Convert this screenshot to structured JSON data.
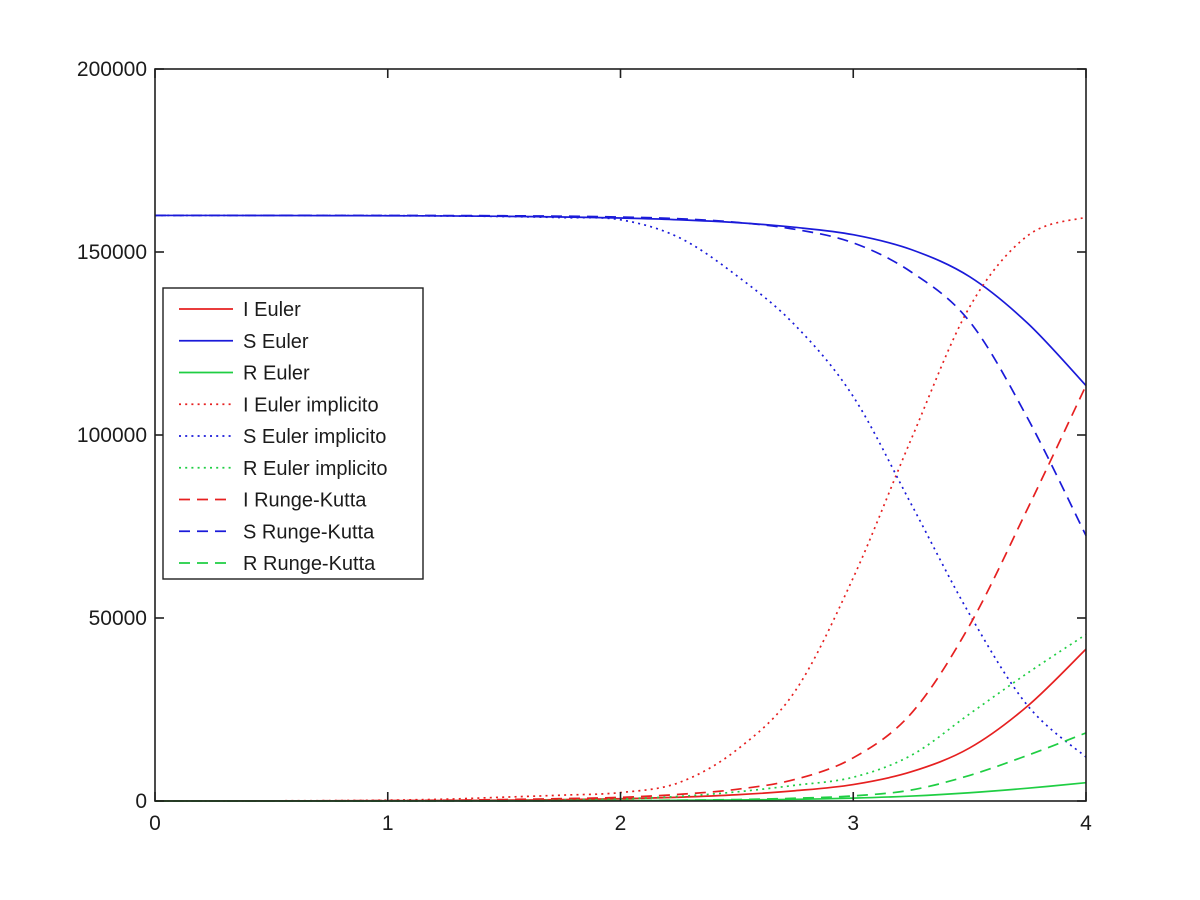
{
  "figure": {
    "background": "#ffffff",
    "axis_color": "#1f1f1f",
    "plot_bg": "#ffffff"
  },
  "chart_data": {
    "type": "line",
    "title": "",
    "xlabel": "",
    "ylabel": "",
    "xlim": [
      0,
      4
    ],
    "ylim": [
      0,
      200000
    ],
    "grid": false,
    "legend_position": "upper-left-inside",
    "x_ticks": [
      0,
      1,
      2,
      3,
      4
    ],
    "x_tick_labels": [
      "0",
      "1",
      "2",
      "3",
      "4"
    ],
    "y_ticks": [
      0,
      50000,
      100000,
      150000,
      200000
    ],
    "y_tick_labels": [
      "0",
      "50000",
      "100000",
      "150000",
      "200000"
    ],
    "x": [
      0,
      0.25,
      0.5,
      0.75,
      1,
      1.25,
      1.5,
      1.75,
      2,
      2.25,
      2.5,
      2.75,
      3,
      3.25,
      3.5,
      3.75,
      4
    ],
    "series": [
      {
        "name": "I Euler",
        "color": "#e62020",
        "style": "solid",
        "values": [
          10,
          16,
          28,
          48,
          80,
          135,
          225,
          375,
          620,
          1030,
          1700,
          2800,
          4500,
          8000,
          14500,
          26000,
          41500
        ]
      },
      {
        "name": "S Euler",
        "color": "#1a1ad9",
        "style": "solid",
        "values": [
          159990,
          159984,
          159972,
          159947,
          159910,
          159850,
          159745,
          159570,
          159285,
          158810,
          158030,
          156740,
          154720,
          150650,
          143250,
          130500,
          113500
        ]
      },
      {
        "name": "R Euler",
        "color": "#1fce43",
        "style": "solid",
        "values": [
          0,
          0,
          0,
          5,
          10,
          15,
          30,
          55,
          95,
          160,
          270,
          460,
          780,
          1350,
          2250,
          3500,
          5000
        ]
      },
      {
        "name": "I Euler implicito",
        "color": "#e62020",
        "style": "dotted",
        "values": [
          10,
          22,
          48,
          105,
          230,
          500,
          1050,
          1600,
          2300,
          5000,
          14000,
          30000,
          61000,
          99000,
          135000,
          154500,
          159500
        ]
      },
      {
        "name": "S Euler implicito",
        "color": "#1a1ad9",
        "style": "dotted",
        "values": [
          160000,
          160000,
          159990,
          159970,
          159930,
          159850,
          159700,
          159400,
          158800,
          154000,
          143500,
          130000,
          110500,
          81000,
          51000,
          26000,
          12000
        ]
      },
      {
        "name": "R Euler implicito",
        "color": "#1fce43",
        "style": "dotted",
        "values": [
          0,
          0,
          5,
          10,
          25,
          55,
          120,
          280,
          600,
          1250,
          2500,
          4300,
          6500,
          12500,
          23800,
          35000,
          45500
        ]
      },
      {
        "name": "I Runge-Kutta",
        "color": "#e62020",
        "style": "dashed",
        "values": [
          10,
          20,
          35,
          65,
          120,
          220,
          400,
          650,
          1000,
          1800,
          3200,
          5900,
          11800,
          24000,
          48000,
          80000,
          113500
        ]
      },
      {
        "name": "S Runge-Kutta",
        "color": "#1a1ad9",
        "style": "dashed",
        "values": [
          160000,
          160000,
          160000,
          159995,
          159985,
          159960,
          159900,
          159780,
          159550,
          159100,
          158100,
          156200,
          152500,
          144500,
          131000,
          104500,
          72500
        ]
      },
      {
        "name": "R Runge-Kutta",
        "color": "#1fce43",
        "style": "dashed",
        "values": [
          0,
          0,
          0,
          5,
          10,
          20,
          40,
          70,
          120,
          220,
          400,
          750,
          1400,
          3000,
          7000,
          12500,
          18600
        ]
      }
    ]
  },
  "legend": {
    "entries": [
      "I Euler",
      "S Euler",
      "R Euler",
      "I Euler implicito",
      "S Euler implicito",
      "R Euler implicito",
      "I Runge-Kutta",
      "S Runge-Kutta",
      "R Runge-Kutta"
    ]
  }
}
